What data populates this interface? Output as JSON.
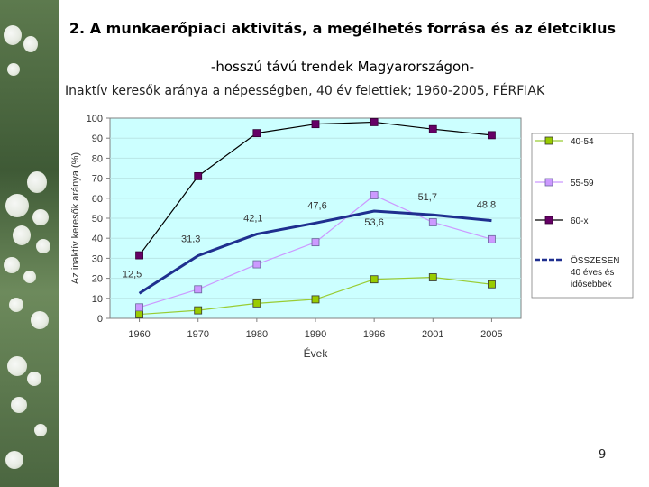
{
  "slide": {
    "title": "2. A munkaerőpiaci aktivitás, a megélhetés forrása és az életciklus",
    "subtitle": "-hosszú távú trendek Magyarországon-",
    "page_number": "9"
  },
  "chart_data": {
    "type": "line",
    "title": "Inaktív keresők aránya a népességben, 40 év felettiek; 1960-2005, FÉRFIAK",
    "xlabel": "Évek",
    "ylabel": "Az inaktív keresők aránya (%)",
    "x": [
      "1960",
      "1970",
      "1980",
      "1990",
      "1996",
      "2001",
      "2005"
    ],
    "ylim": [
      0,
      100
    ],
    "yticks": [
      0,
      10,
      20,
      30,
      40,
      50,
      60,
      70,
      80,
      90,
      100
    ],
    "grid": true,
    "legend_position": "right",
    "series": [
      {
        "name": "40-54",
        "values": [
          2,
          4,
          7.5,
          9.5,
          19.5,
          20.5,
          17
        ],
        "color": "#99cc00",
        "line_color": "#99cc33",
        "marker": "square",
        "marker_edge": "#333333"
      },
      {
        "name": "55-59",
        "values": [
          5.5,
          14.5,
          27,
          38,
          61.5,
          48,
          39.5
        ],
        "color": "#cc99ff",
        "line_color": "#cc99ff",
        "marker": "square",
        "marker_edge": "#666699"
      },
      {
        "name": "60-x",
        "values": [
          31.5,
          71,
          92.5,
          97,
          98,
          94.5,
          91.5
        ],
        "color": "#660066",
        "line_color": "#000000",
        "marker": "square",
        "marker_edge": "#330033"
      },
      {
        "name": "ÖSSZESEN\n40 éves és\nidősebbek",
        "values": [
          12.5,
          31.3,
          42.1,
          47.6,
          53.6,
          51.7,
          48.8
        ],
        "color": "#1f2f8f",
        "line_color": "#1f2f8f",
        "marker": "none",
        "line_width": 3
      }
    ],
    "data_labels": [
      {
        "series": 3,
        "index": 0,
        "text": "12,5"
      },
      {
        "series": 3,
        "index": 1,
        "text": "31,3"
      },
      {
        "series": 3,
        "index": 2,
        "text": "42,1"
      },
      {
        "series": 3,
        "index": 3,
        "text": "47,6"
      },
      {
        "series": 3,
        "index": 4,
        "text": "53,6"
      },
      {
        "series": 3,
        "index": 5,
        "text": "51,7"
      },
      {
        "series": 3,
        "index": 6,
        "text": "48,8"
      }
    ],
    "plot_background": "#ccffff",
    "chart_background": "#ffffff"
  }
}
